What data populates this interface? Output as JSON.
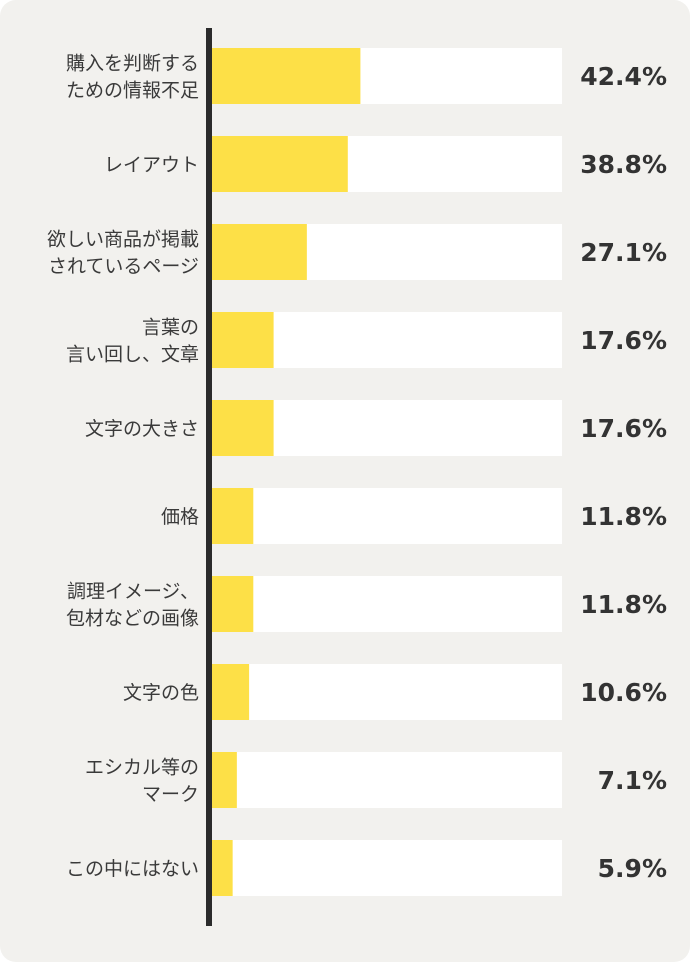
{
  "chart_data": {
    "type": "bar",
    "orientation": "horizontal",
    "categories": [
      [
        "購入を判断する",
        "ための情報不足"
      ],
      [
        "レイアウト"
      ],
      [
        "欲しい商品が掲載",
        "されているページ"
      ],
      [
        "言葉の",
        "言い回し、文章"
      ],
      [
        "文字の大きさ"
      ],
      [
        "価格"
      ],
      [
        "調理イメージ、",
        "包材などの画像"
      ],
      [
        "文字の色"
      ],
      [
        "エシカル等の",
        "マーク"
      ],
      [
        "この中にはない"
      ]
    ],
    "values": [
      42.4,
      38.8,
      27.1,
      17.6,
      17.6,
      11.8,
      11.8,
      10.6,
      7.1,
      5.9
    ],
    "value_labels": [
      "42.4%",
      "38.8%",
      "27.1%",
      "17.6%",
      "17.6%",
      "11.8%",
      "11.8%",
      "10.6%",
      "7.1%",
      "5.9%"
    ],
    "xlim": [
      0,
      100
    ],
    "grid": false,
    "colors": {
      "bar": "#fde047",
      "track": "#ffffff",
      "axis": "#2b2b2b",
      "background": "#f2f1ee"
    }
  }
}
